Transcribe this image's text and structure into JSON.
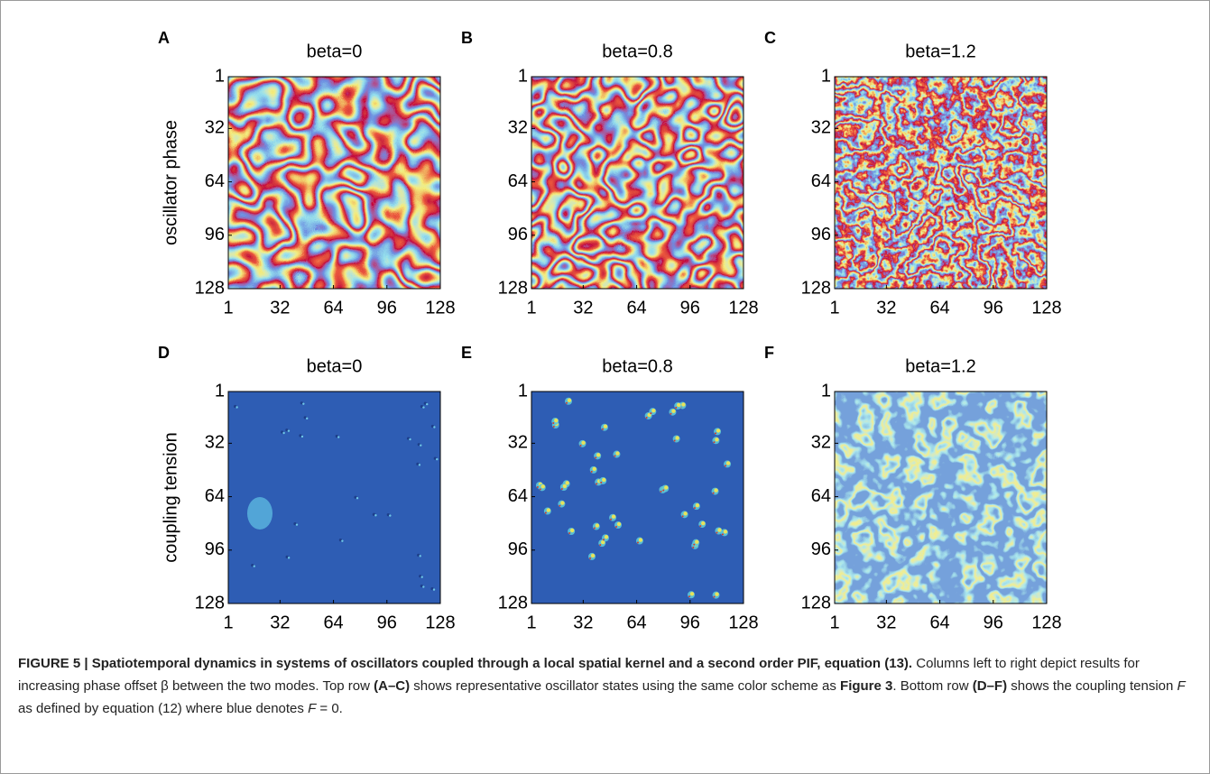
{
  "figure": {
    "panels": [
      {
        "label": "A",
        "title": "beta=0"
      },
      {
        "label": "B",
        "title": "beta=0.8"
      },
      {
        "label": "C",
        "title": "beta=1.2"
      },
      {
        "label": "D",
        "title": "beta=0"
      },
      {
        "label": "E",
        "title": "beta=0.8"
      },
      {
        "label": "F",
        "title": "beta=1.2"
      }
    ],
    "row_labels": [
      "oscillator phase",
      "coupling tension"
    ],
    "ticks": [
      1,
      32,
      64,
      96,
      128
    ]
  },
  "caption": [
    {
      "text": "FIGURE 5 | Spatiotemporal dynamics in systems of oscillators coupled through a local spatial kernel and a second order PIF, equation (13).",
      "bold": true
    },
    {
      "text": " Columns left to right depict results for increasing phase offset β between the two modes. Top row "
    },
    {
      "text": "(A–C)",
      "bold": true
    },
    {
      "text": " shows representative oscillator states using the same color scheme as "
    },
    {
      "text": "Figure 3",
      "bold": true
    },
    {
      "text": ". Bottom row "
    },
    {
      "text": "(D–F)",
      "bold": true
    },
    {
      "text": " shows the coupling tension "
    },
    {
      "text": "F",
      "italic": true
    },
    {
      "text": " as defined by equation (12) where blue denotes "
    },
    {
      "text": "F",
      "italic": true
    },
    {
      "text": " = 0."
    }
  ]
}
